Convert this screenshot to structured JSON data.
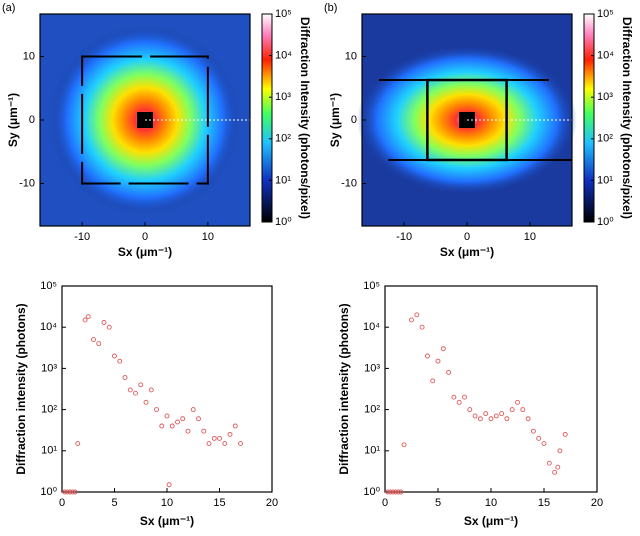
{
  "chart_data": [
    {
      "type": "heatmap",
      "panel_label": "(a)",
      "x_label": "Sx (μm⁻¹)",
      "y_label": "Sy (μm⁻¹)",
      "xlim": [
        -16.7,
        16.7
      ],
      "ylim": [
        -16.7,
        16.7
      ],
      "xticks": [
        -10,
        0,
        10
      ],
      "yticks": [
        -10,
        0,
        10
      ],
      "colorbar": {
        "label": "Diffraction Intensity (photons/pixel)",
        "lim": [
          1,
          100000
        ],
        "log": true,
        "ticks": [
          {
            "value": 1,
            "label": "10⁰"
          },
          {
            "value": 10,
            "label": "10¹"
          },
          {
            "value": 100,
            "label": "10²"
          },
          {
            "value": 1000,
            "label": "10³"
          },
          {
            "value": 10000,
            "label": "10⁴"
          },
          {
            "value": 100000,
            "label": "10⁵"
          }
        ]
      }
    },
    {
      "type": "heatmap",
      "panel_label": "(b)",
      "x_label": "Sx (μm⁻¹)",
      "y_label": "Sy (μm⁻¹)",
      "xlim": [
        -16.7,
        16.7
      ],
      "ylim": [
        -16.7,
        16.7
      ],
      "xticks": [
        -10,
        0,
        10
      ],
      "yticks": [
        -10,
        0,
        10
      ],
      "colorbar": {
        "label": "Diffraction Intensity (photons/pixel)",
        "lim": [
          1,
          100000
        ],
        "log": true,
        "ticks": [
          {
            "value": 1,
            "label": "10⁰"
          },
          {
            "value": 10,
            "label": "10¹"
          },
          {
            "value": 100,
            "label": "10²"
          },
          {
            "value": 1000,
            "label": "10³"
          },
          {
            "value": 10000,
            "label": "10⁴"
          },
          {
            "value": 100000,
            "label": "10⁵"
          }
        ]
      }
    },
    {
      "type": "scatter",
      "x_label": "Sx (μm⁻¹)",
      "y_label": "Diffraction intensity (photons)",
      "color": "#e05a5a",
      "log_y": true,
      "xlim": [
        0,
        20
      ],
      "ylim": [
        1,
        100000
      ],
      "xticks": [
        0,
        5,
        10,
        15,
        20
      ],
      "yticks": [
        {
          "value": 1,
          "label": "10⁰"
        },
        {
          "value": 10,
          "label": "10¹"
        },
        {
          "value": 100,
          "label": "10²"
        },
        {
          "value": 1000,
          "label": "10³"
        },
        {
          "value": 10000,
          "label": "10⁴"
        },
        {
          "value": 100000,
          "label": "10⁵"
        }
      ],
      "x": [
        0.25,
        0.5,
        0.75,
        1,
        1.25,
        1.5,
        2.2,
        2.5,
        3,
        3.5,
        4,
        4.5,
        5,
        5.5,
        6,
        6.5,
        7,
        7.5,
        8,
        8.5,
        9,
        9.5,
        10,
        10.2,
        10.5,
        11,
        11.5,
        12,
        12.5,
        13,
        13.5,
        14,
        14.5,
        15,
        15.5,
        16,
        16.5,
        17
      ],
      "values": [
        1,
        1,
        1,
        1,
        1,
        15,
        15000,
        18000,
        5000,
        4000,
        13000,
        10000,
        2000,
        1500,
        600,
        300,
        250,
        400,
        150,
        300,
        100,
        40,
        70,
        1.5,
        40,
        50,
        60,
        30,
        100,
        60,
        30,
        15,
        20,
        20,
        15,
        25,
        40,
        15
      ]
    },
    {
      "type": "scatter",
      "x_label": "Sx (μm⁻¹)",
      "y_label": "Diffraction intensity (photons)",
      "color": "#e05a5a",
      "log_y": true,
      "xlim": [
        0,
        20
      ],
      "ylim": [
        1,
        100000
      ],
      "xticks": [
        0,
        5,
        10,
        15,
        20
      ],
      "yticks": [
        {
          "value": 1,
          "label": "10⁰"
        },
        {
          "value": 10,
          "label": "10¹"
        },
        {
          "value": 100,
          "label": "10²"
        },
        {
          "value": 1000,
          "label": "10³"
        },
        {
          "value": 10000,
          "label": "10⁴"
        },
        {
          "value": 100000,
          "label": "10⁵"
        }
      ],
      "x": [
        0.25,
        0.5,
        0.75,
        1,
        1.25,
        1.5,
        1.8,
        2.5,
        3,
        3.5,
        4,
        4.5,
        5,
        5.5,
        6,
        6.5,
        7,
        7.5,
        8,
        8.5,
        9,
        9.5,
        10,
        10.5,
        11,
        11.5,
        12,
        12.5,
        13,
        13.5,
        14,
        14.5,
        15,
        15.5,
        16,
        16.3,
        16.5,
        17
      ],
      "values": [
        1,
        1,
        1,
        1,
        1,
        1,
        14,
        15000,
        20000,
        10000,
        2000,
        500,
        1500,
        3000,
        800,
        200,
        150,
        200,
        100,
        70,
        60,
        80,
        60,
        70,
        80,
        60,
        100,
        150,
        100,
        60,
        30,
        20,
        15,
        5,
        3,
        4,
        10,
        25
      ]
    }
  ]
}
